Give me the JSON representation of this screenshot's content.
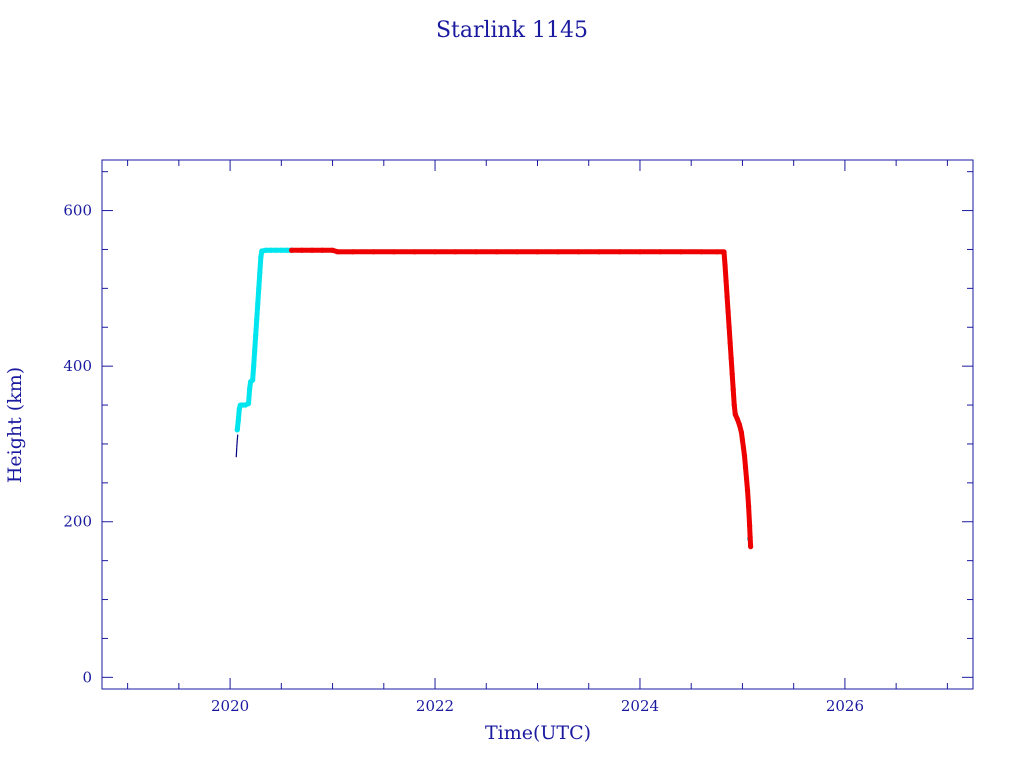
{
  "chart_data": {
    "type": "scatter",
    "title": "Starlink 1145",
    "xlabel": "Time(UTC)",
    "ylabel": "Height (km)",
    "xlim": [
      2018.75,
      2027.25
    ],
    "ylim": [
      -15,
      665
    ],
    "x_major_ticks": [
      2020,
      2022,
      2024,
      2026
    ],
    "x_minor_step": 0.5,
    "y_major_ticks": [
      0,
      200,
      400,
      600
    ],
    "y_minor_step": 50,
    "grid": false,
    "colors": {
      "axis": "#1a1aa0",
      "initial": "#000080",
      "cyan": "#00e5ee",
      "red": "#ee0000"
    },
    "series": [
      {
        "color": "cyan",
        "points": [
          [
            2020.07,
            318
          ],
          [
            2020.08,
            330
          ],
          [
            2020.09,
            345
          ],
          [
            2020.1,
            350
          ],
          [
            2020.12,
            350
          ],
          [
            2020.15,
            350
          ],
          [
            2020.18,
            352
          ],
          [
            2020.19,
            370
          ],
          [
            2020.2,
            380
          ],
          [
            2020.22,
            382
          ],
          [
            2020.23,
            400
          ],
          [
            2020.24,
            420
          ],
          [
            2020.25,
            440
          ],
          [
            2020.26,
            460
          ],
          [
            2020.27,
            480
          ],
          [
            2020.28,
            500
          ],
          [
            2020.29,
            520
          ],
          [
            2020.3,
            540
          ],
          [
            2020.31,
            548
          ],
          [
            2020.35,
            549
          ],
          [
            2020.4,
            549
          ],
          [
            2020.45,
            549
          ],
          [
            2020.5,
            549
          ],
          [
            2020.55,
            549
          ],
          [
            2020.6,
            549
          ],
          [
            2025.07,
            178
          ]
        ]
      },
      {
        "color": "red",
        "points": [
          [
            2020.6,
            549
          ],
          [
            2020.7,
            549
          ],
          [
            2020.8,
            549
          ],
          [
            2020.9,
            549
          ],
          [
            2021.0,
            549
          ],
          [
            2021.05,
            547
          ],
          [
            2021.2,
            547
          ],
          [
            2021.4,
            547
          ],
          [
            2021.6,
            547
          ],
          [
            2021.8,
            547
          ],
          [
            2022.0,
            547
          ],
          [
            2022.2,
            547
          ],
          [
            2022.4,
            547
          ],
          [
            2022.6,
            547
          ],
          [
            2022.8,
            547
          ],
          [
            2023.0,
            547
          ],
          [
            2023.2,
            547
          ],
          [
            2023.4,
            547
          ],
          [
            2023.6,
            547
          ],
          [
            2023.8,
            547
          ],
          [
            2024.0,
            547
          ],
          [
            2024.2,
            547
          ],
          [
            2024.4,
            547
          ],
          [
            2024.6,
            547
          ],
          [
            2024.75,
            547
          ],
          [
            2024.82,
            547
          ],
          [
            2024.83,
            530
          ],
          [
            2024.84,
            510
          ],
          [
            2024.85,
            490
          ],
          [
            2024.86,
            470
          ],
          [
            2024.87,
            450
          ],
          [
            2024.88,
            430
          ],
          [
            2024.89,
            410
          ],
          [
            2024.9,
            390
          ],
          [
            2024.91,
            370
          ],
          [
            2024.92,
            350
          ],
          [
            2024.93,
            338
          ],
          [
            2024.95,
            332
          ],
          [
            2024.97,
            325
          ],
          [
            2024.99,
            315
          ],
          [
            2025.0,
            305
          ],
          [
            2025.01,
            295
          ],
          [
            2025.02,
            285
          ],
          [
            2025.03,
            270
          ],
          [
            2025.04,
            255
          ],
          [
            2025.05,
            240
          ],
          [
            2025.06,
            220
          ],
          [
            2025.07,
            195
          ],
          [
            2025.075,
            180
          ],
          [
            2025.08,
            168
          ]
        ]
      }
    ],
    "initial_trace": [
      [
        2020.06,
        283
      ],
      [
        2020.065,
        295
      ],
      [
        2020.07,
        305
      ],
      [
        2020.075,
        312
      ]
    ]
  }
}
